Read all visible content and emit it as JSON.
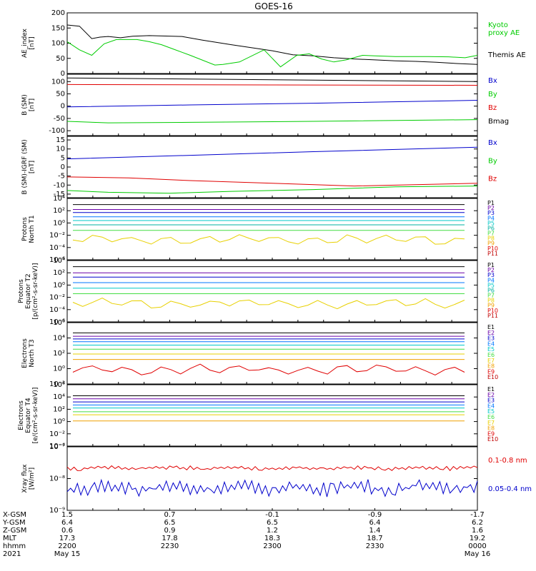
{
  "title": "GOES-16",
  "colors": {
    "black": "#000000",
    "green": "#00cc00",
    "red": "#e00000",
    "blue": "#0000cc",
    "purple": "#6a00a8",
    "cyan": "#00c8c8",
    "teal": "#00b0a0",
    "lightgreen": "#44dd44",
    "yellow": "#e8d000",
    "orange": "#f0a000",
    "darkred": "#c00000"
  },
  "chart_data": [
    {
      "id": "ae",
      "type": "line",
      "ylabel": "AE_index\n[nT]",
      "ylim": [
        0,
        200
      ],
      "yticks": [
        "0",
        "50",
        "100",
        "150",
        "200"
      ],
      "legend": [
        {
          "name": "Kyoto\nproxy AE",
          "color": "#00cc00"
        },
        {
          "name": "Themis AE",
          "color": "#000000"
        }
      ],
      "series": [
        {
          "name": "Themis AE",
          "color": "#000000",
          "x": [
            0.0,
            0.03,
            0.06,
            0.08,
            0.1,
            0.13,
            0.16,
            0.2,
            0.28,
            0.33,
            0.4,
            0.45,
            0.5,
            0.55,
            0.6,
            0.65,
            0.7,
            0.75,
            0.8,
            0.85,
            0.9,
            0.95,
            1.0
          ],
          "y": [
            160,
            156,
            115,
            120,
            122,
            118,
            123,
            125,
            122,
            110,
            95,
            85,
            75,
            62,
            58,
            52,
            48,
            45,
            42,
            40,
            37,
            33,
            30
          ]
        },
        {
          "name": "Kyoto proxy AE",
          "color": "#00cc00",
          "x": [
            0.0,
            0.03,
            0.06,
            0.09,
            0.12,
            0.17,
            0.2,
            0.23,
            0.26,
            0.3,
            0.36,
            0.38,
            0.42,
            0.48,
            0.52,
            0.56,
            0.59,
            0.62,
            0.65,
            0.68,
            0.72,
            0.75,
            0.8,
            0.88,
            0.93,
            0.97,
            1.0
          ],
          "y": [
            105,
            78,
            60,
            98,
            112,
            112,
            105,
            95,
            80,
            60,
            28,
            30,
            38,
            78,
            22,
            60,
            65,
            48,
            38,
            45,
            60,
            58,
            56,
            56,
            55,
            52,
            60
          ]
        }
      ]
    },
    {
      "id": "bsm",
      "type": "line",
      "ylabel": "B (SM)\n[nT]",
      "ylim": [
        -120,
        130
      ],
      "yticks": [
        "-100",
        "-50",
        "0",
        "50",
        "100"
      ],
      "legend": [
        {
          "name": "Bx",
          "color": "#0000cc"
        },
        {
          "name": "By",
          "color": "#00cc00"
        },
        {
          "name": "Bz",
          "color": "#e00000"
        },
        {
          "name": "Bmag",
          "color": "#000000"
        }
      ],
      "series": [
        {
          "name": "Bmag",
          "color": "#000000",
          "x": [
            0,
            1
          ],
          "y": [
            115,
            100
          ]
        },
        {
          "name": "Bz",
          "color": "#e00000",
          "x": [
            0,
            1
          ],
          "y": [
            88,
            85
          ]
        },
        {
          "name": "Bx",
          "color": "#0000cc",
          "x": [
            0,
            0.3,
            0.6,
            1.0
          ],
          "y": [
            -3,
            5,
            12,
            24
          ]
        },
        {
          "name": "By",
          "color": "#00cc00",
          "x": [
            0,
            0.1,
            0.3,
            0.6,
            1.0
          ],
          "y": [
            -62,
            -68,
            -66,
            -62,
            -55
          ]
        }
      ]
    },
    {
      "id": "bigrf",
      "type": "line",
      "ylabel": "B (SM)-IGRF (SM)\n[nT]",
      "ylim": [
        -17,
        17
      ],
      "yticks": [
        "-15",
        "-10",
        "-5",
        "0",
        "5",
        "10",
        "15"
      ],
      "legend": [
        {
          "name": "Bx",
          "color": "#0000cc"
        },
        {
          "name": "By",
          "color": "#00cc00"
        },
        {
          "name": "Bz",
          "color": "#e00000"
        }
      ],
      "series": [
        {
          "name": "Bx",
          "color": "#0000cc",
          "x": [
            0,
            0.3,
            0.6,
            1.0
          ],
          "y": [
            4.5,
            6.5,
            8.5,
            11
          ]
        },
        {
          "name": "Bz",
          "color": "#e00000",
          "x": [
            0,
            0.15,
            0.3,
            0.5,
            0.7,
            1.0
          ],
          "y": [
            -5.5,
            -6,
            -7.5,
            -9,
            -10.5,
            -9
          ]
        },
        {
          "name": "By",
          "color": "#00cc00",
          "x": [
            0,
            0.1,
            0.25,
            0.4,
            0.6,
            0.8,
            1.0
          ],
          "y": [
            -13,
            -14,
            -14.5,
            -13.5,
            -12.5,
            -11,
            -10.5
          ]
        }
      ]
    },
    {
      "id": "pn",
      "type": "line",
      "ylabel": "Protons\nNorth T1",
      "ylim_log10": [
        -6,
        4
      ],
      "yticks": [
        "10⁴",
        "10²",
        "10⁰",
        "10⁻²",
        "10⁻⁴",
        "10⁻⁶"
      ],
      "legend": [
        "P1",
        "P2",
        "P3",
        "P4",
        "P5",
        "P6",
        "P7",
        "P8",
        "P9",
        "P10",
        "P11"
      ],
      "legend_colors": [
        "#000000",
        "#6a00a8",
        "#0000cc",
        "#0077ff",
        "#00c8c8",
        "#00b0a0",
        "#44dd44",
        "#e8d000",
        "#f0a000",
        "#e00000",
        "#c00000"
      ],
      "levels_log10": [
        3.0,
        2.2,
        1.7,
        1.0,
        0.4,
        -0.3,
        -1.2,
        -2.7
      ],
      "level_colors": [
        "#000000",
        "#6a00a8",
        "#0000cc",
        "#0077ff",
        "#00c8c8",
        "#00b0a0",
        "#44dd44",
        "#e8d000"
      ]
    },
    {
      "id": "pe",
      "type": "line",
      "ylabel": "Protons\nEquator T2\n[p/(cm²-s-sr-keV)]",
      "ylim_log10": [
        -6,
        4
      ],
      "yticks": [
        "10⁴",
        "10²",
        "10⁰",
        "10⁻²",
        "10⁻⁴",
        "10⁻⁶"
      ],
      "legend": [
        "P1",
        "P2",
        "P3",
        "P4",
        "P5",
        "P6",
        "P7",
        "P8",
        "P9",
        "P10",
        "P11"
      ],
      "legend_colors": [
        "#000000",
        "#6a00a8",
        "#0000cc",
        "#0077ff",
        "#00c8c8",
        "#00b0a0",
        "#44dd44",
        "#e8d000",
        "#f0a000",
        "#e00000",
        "#c00000"
      ],
      "levels_log10": [
        3.0,
        2.0,
        1.3,
        0.4,
        -0.5,
        -1.4,
        -3.0
      ],
      "level_colors": [
        "#000000",
        "#6a00a8",
        "#0000cc",
        "#0077ff",
        "#00c8c8",
        "#44dd44",
        "#e8d000"
      ]
    },
    {
      "id": "en",
      "type": "line",
      "ylabel": "Electrons\nNorth T3",
      "ylim_log10": [
        -3,
        6
      ],
      "yticks": [
        "10⁶",
        "10⁴",
        "10²",
        "10⁰",
        "10⁻²"
      ],
      "legend": [
        "E1",
        "E2",
        "E3",
        "E4",
        "E5",
        "E6",
        "E7",
        "E8",
        "E9",
        "E10"
      ],
      "legend_colors": [
        "#000000",
        "#6a00a8",
        "#0000cc",
        "#0077ff",
        "#00c8c8",
        "#44dd44",
        "#e8d000",
        "#f0a000",
        "#e00000",
        "#c00000"
      ],
      "levels_log10": [
        4.5,
        4.0,
        3.6,
        3.2,
        2.7,
        2.1,
        1.4,
        0.6,
        -0.9
      ],
      "level_colors": [
        "#000000",
        "#6a00a8",
        "#0000cc",
        "#0077ff",
        "#00c8c8",
        "#44dd44",
        "#e8d000",
        "#f0a000",
        "#e00000"
      ]
    },
    {
      "id": "ee",
      "type": "line",
      "ylabel": "Electrons\nEquator T4\n[e/(cm²-s-sr-keV)]",
      "ylim_log10": [
        -4,
        6
      ],
      "yticks": [
        "10⁶",
        "10⁴",
        "10²",
        "10⁰",
        "10⁻²",
        "10⁻⁴"
      ],
      "legend": [
        "E1",
        "E2",
        "E3",
        "E4",
        "E5",
        "E6",
        "E7",
        "E8",
        "E9",
        "E10"
      ],
      "legend_colors": [
        "#000000",
        "#6a00a8",
        "#0000cc",
        "#0077ff",
        "#00c8c8",
        "#44dd44",
        "#e8d000",
        "#f0a000",
        "#e00000",
        "#c00000"
      ],
      "levels_log10": [
        4.2,
        3.7,
        3.2,
        2.7,
        2.2,
        1.6,
        1.1,
        0.1
      ],
      "level_colors": [
        "#000000",
        "#6a00a8",
        "#0000cc",
        "#0077ff",
        "#00c8c8",
        "#44dd44",
        "#e8d000",
        "#f0a000"
      ]
    },
    {
      "id": "xray",
      "type": "line",
      "ylabel": "Xray flux\n[W/m²]",
      "ylim_log10": [
        -9,
        -7
      ],
      "yticks": [
        "10⁻⁷",
        "10⁻⁸",
        "10⁻⁹"
      ],
      "legend": [
        {
          "name": "0.1-0.8 nm",
          "color": "#e00000"
        },
        {
          "name": "0.05-0.4 nm",
          "color": "#0000cc"
        }
      ],
      "series": [
        {
          "name": "0.1-0.8 nm",
          "color": "#e00000",
          "level_log10": -7.7
        },
        {
          "name": "0.05-0.4 nm",
          "color": "#0000cc",
          "level_log10": -8.4
        }
      ]
    }
  ],
  "axis": {
    "rows": [
      {
        "label": "X-GSM",
        "values": [
          "1.5",
          "0.7",
          "-0.1",
          "-0.9",
          "-1.7"
        ]
      },
      {
        "label": "Y-GSM",
        "values": [
          "6.4",
          "6.5",
          "6.5",
          "6.4",
          "6.2"
        ]
      },
      {
        "label": "Z-GSM",
        "values": [
          "0.6",
          "0.9",
          "1.2",
          "1.4",
          "1.6"
        ]
      },
      {
        "label": "MLT",
        "values": [
          "17.3",
          "17.8",
          "18.3",
          "18.7",
          "19.2"
        ]
      },
      {
        "label": "hhmm",
        "values": [
          "2200",
          "2230",
          "2300",
          "2330",
          "0000"
        ]
      },
      {
        "label": "2021",
        "values": [
          "May 15",
          "",
          "",
          "",
          "May 16"
        ]
      }
    ]
  }
}
